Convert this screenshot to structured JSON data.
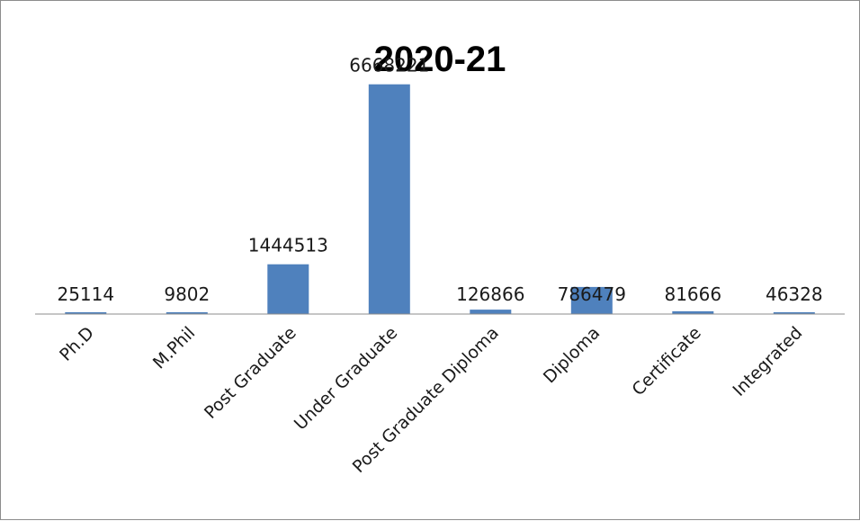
{
  "chart_data": {
    "type": "bar",
    "title": "2020-21",
    "categories": [
      "Ph.D",
      "M.Phil",
      "Post Graduate",
      "Under Graduate",
      "Post Graduate Diploma",
      "Diploma",
      "Certificate",
      "Integrated"
    ],
    "values": [
      25114,
      9802,
      1444513,
      6668221,
      126866,
      786479,
      81666,
      46328
    ],
    "data_labels": [
      "25114",
      "9802",
      "1444513",
      "6668221",
      "126866",
      "786479",
      "81666",
      "46328"
    ],
    "ylim": [
      0,
      7000000
    ],
    "grid": false,
    "legend": "none",
    "bar_color": "#4f81bd",
    "axis_color": "#8c8c8c"
  }
}
